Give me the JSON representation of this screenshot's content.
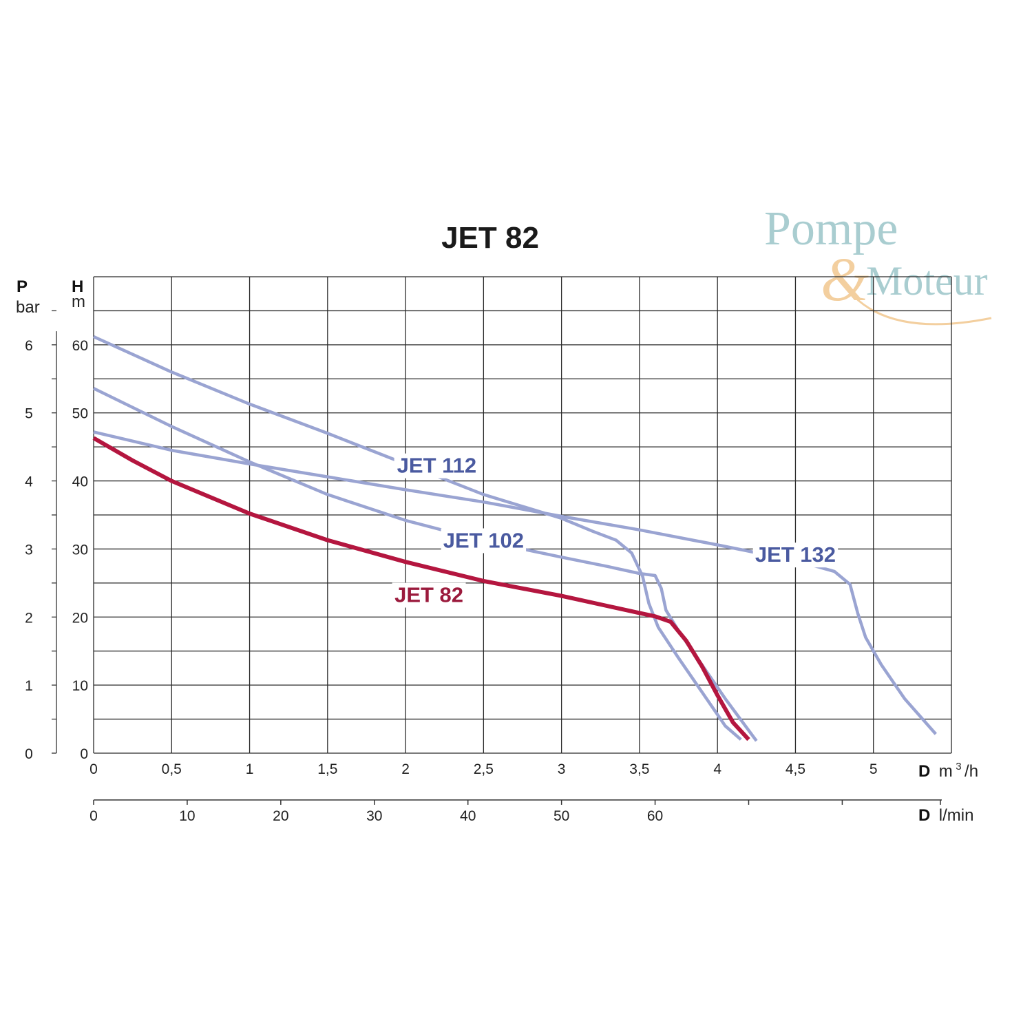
{
  "chart_data": {
    "type": "line",
    "title": "JET 82",
    "x_axis": {
      "unit_bold": "D",
      "unit": "m",
      "unit_sup": "3",
      "unit_tail": "/h",
      "range": [
        0,
        5.5
      ],
      "ticks": [
        0,
        0.5,
        1,
        1.5,
        2,
        2.5,
        3,
        3.5,
        4,
        4.5,
        5
      ],
      "tick_labels": [
        "0",
        "0,5",
        "1",
        "1,5",
        "2",
        "2,5",
        "3",
        "3,5",
        "4",
        "4,5",
        "5"
      ]
    },
    "x_axis_secondary": {
      "unit_bold": "D",
      "unit": "l/min",
      "ticks": [
        0,
        10,
        20,
        30,
        40,
        50,
        60,
        70,
        80
      ],
      "tick_labels": [
        "0",
        "10",
        "20",
        "30",
        "40",
        "50",
        "60",
        "",
        ""
      ]
    },
    "y_axis": {
      "unit_bold": "H",
      "unit": "m",
      "range": [
        0,
        70
      ],
      "ticks": [
        0,
        10,
        20,
        30,
        40,
        50,
        60
      ],
      "tick_labels": [
        "0",
        "10",
        "20",
        "30",
        "40",
        "50",
        "60"
      ]
    },
    "y_axis_secondary": {
      "unit_bold": "P",
      "unit": "bar",
      "ticks": [
        0,
        1,
        2,
        3,
        4,
        5,
        6
      ],
      "tick_labels": [
        "0",
        "1",
        "2",
        "3",
        "4",
        "5",
        "6"
      ]
    },
    "grid": true,
    "series": [
      {
        "name": "JET 112",
        "color": "#9aa4d2",
        "label_color": "#4a5aa0",
        "points": [
          [
            0,
            61.2
          ],
          [
            0.5,
            56
          ],
          [
            1,
            51.3
          ],
          [
            1.5,
            47
          ],
          [
            2,
            42.5
          ],
          [
            2.5,
            38
          ],
          [
            3,
            34.5
          ],
          [
            3.2,
            32.6
          ],
          [
            3.35,
            31.3
          ],
          [
            3.45,
            29.4
          ],
          [
            3.52,
            26
          ],
          [
            3.56,
            22
          ],
          [
            3.62,
            18.5
          ],
          [
            3.75,
            14
          ],
          [
            3.9,
            9
          ],
          [
            4.05,
            4
          ],
          [
            4.15,
            2
          ]
        ]
      },
      {
        "name": "JET 102",
        "color": "#9aa4d2",
        "label_color": "#4a5aa0",
        "points": [
          [
            0,
            53.6
          ],
          [
            0.5,
            48
          ],
          [
            1,
            42.8
          ],
          [
            1.5,
            38
          ],
          [
            2,
            34.2
          ],
          [
            2.5,
            31.2
          ],
          [
            3,
            28.8
          ],
          [
            3.3,
            27.4
          ],
          [
            3.5,
            26.4
          ],
          [
            3.6,
            26.1
          ],
          [
            3.64,
            24.2
          ],
          [
            3.67,
            21
          ],
          [
            3.75,
            18
          ],
          [
            3.9,
            13
          ],
          [
            4.05,
            8
          ],
          [
            4.25,
            1.8
          ]
        ]
      },
      {
        "name": "JET 132",
        "color": "#9aa4d2",
        "label_color": "#4a5aa0",
        "points": [
          [
            0,
            47.2
          ],
          [
            0.5,
            44.5
          ],
          [
            1,
            42.5
          ],
          [
            1.5,
            40.6
          ],
          [
            2,
            38.7
          ],
          [
            2.5,
            36.9
          ],
          [
            3,
            34.8
          ],
          [
            3.5,
            32.8
          ],
          [
            4,
            30.6
          ],
          [
            4.5,
            28.3
          ],
          [
            4.75,
            26.7
          ],
          [
            4.85,
            24.8
          ],
          [
            4.9,
            20.5
          ],
          [
            4.95,
            17
          ],
          [
            5.05,
            13
          ],
          [
            5.2,
            8
          ],
          [
            5.4,
            2.8
          ]
        ]
      },
      {
        "name": "JET 82",
        "color": "#b4163f",
        "label_color": "#9b1a3c",
        "points": [
          [
            0,
            46.3
          ],
          [
            0.25,
            43
          ],
          [
            0.5,
            40
          ],
          [
            1,
            35.2
          ],
          [
            1.5,
            31.3
          ],
          [
            2,
            28.1
          ],
          [
            2.5,
            25.3
          ],
          [
            3,
            23.1
          ],
          [
            3.3,
            21.6
          ],
          [
            3.5,
            20.6
          ],
          [
            3.6,
            20.1
          ],
          [
            3.7,
            19.3
          ],
          [
            3.8,
            16.5
          ],
          [
            3.9,
            12.8
          ],
          [
            4,
            8.5
          ],
          [
            4.1,
            4.5
          ],
          [
            4.2,
            2
          ]
        ]
      }
    ],
    "legend": "inline labels"
  },
  "watermark": {
    "line1": "Pompe",
    "amp": "&",
    "line2": "Moteur",
    "color": "#a9cdd0",
    "amp_color": "#f3cf9f"
  }
}
